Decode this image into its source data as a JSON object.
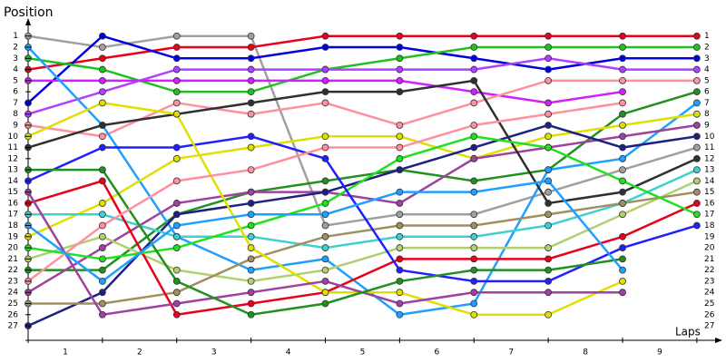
{
  "chart_data": {
    "type": "line",
    "y_label": "Position",
    "x_label": "Laps",
    "x": [
      0,
      1,
      2,
      3,
      4,
      5,
      6,
      7,
      8,
      9
    ],
    "xlim": [
      0,
      9.27
    ],
    "xticks": [
      {
        "value": 0.5,
        "label": "1"
      },
      {
        "value": 1.5,
        "label": "2"
      },
      {
        "value": 2.5,
        "label": "3"
      },
      {
        "value": 3.5,
        "label": "4"
      },
      {
        "value": 4.5,
        "label": "5"
      },
      {
        "value": 5.5,
        "label": "6"
      },
      {
        "value": 6.5,
        "label": "7"
      },
      {
        "value": 7.5,
        "label": "8"
      },
      {
        "value": 8.5,
        "label": "9"
      }
    ],
    "ylim": [
      28.3,
      -0.2
    ],
    "yticks": [
      1,
      2,
      3,
      4,
      5,
      6,
      7,
      8,
      9,
      10,
      11,
      12,
      13,
      14,
      15,
      16,
      17,
      18,
      19,
      20,
      21,
      22,
      23,
      24,
      25,
      26,
      27
    ],
    "series": [
      {
        "color": "#a0a0a0",
        "values": [
          1,
          2,
          1,
          1,
          18,
          17,
          17,
          15,
          13,
          11
        ]
      },
      {
        "color": "#e8001c",
        "values": [
          4,
          3,
          2,
          2,
          1,
          1,
          1,
          1,
          1,
          1
        ]
      },
      {
        "color": "#0000e0",
        "values": [
          7,
          1,
          3,
          3,
          2,
          2,
          3,
          4,
          3,
          3
        ]
      },
      {
        "color": "#20c020",
        "values": [
          3,
          4,
          6,
          6,
          4,
          3,
          2,
          2,
          2,
          2
        ]
      },
      {
        "color": "#b040ff",
        "values": [
          8,
          6,
          4,
          4,
          4,
          4,
          4,
          3,
          4,
          4
        ]
      },
      {
        "color": "#d020ff",
        "values": [
          5,
          5,
          5,
          5,
          5,
          5,
          6,
          7,
          6,
          null
        ]
      },
      {
        "color": "#ff90a0",
        "values": [
          9,
          10,
          7,
          8,
          7,
          9,
          7,
          5,
          5,
          5
        ]
      },
      {
        "color": "#209020",
        "values": [
          22,
          22,
          17,
          15,
          14,
          13,
          14,
          13,
          8,
          6
        ]
      },
      {
        "color": "#1ea0ff",
        "values": [
          2,
          9,
          19,
          22,
          21,
          26,
          25,
          13,
          12,
          7
        ]
      },
      {
        "color": "#e0e000",
        "values": [
          19,
          16,
          12,
          11,
          10,
          10,
          12,
          10,
          9,
          8
        ]
      },
      {
        "color": "#a040a0",
        "values": [
          24,
          20,
          16,
          15,
          15,
          16,
          12,
          11,
          10,
          9
        ]
      },
      {
        "color": "#202080",
        "values": [
          27,
          24,
          17,
          16,
          15,
          13,
          11,
          9,
          11,
          10
        ]
      },
      {
        "color": "#303030",
        "values": [
          11,
          9,
          8,
          7,
          6,
          6,
          5,
          16,
          15,
          12
        ]
      },
      {
        "color": "#40d0d0",
        "values": [
          17,
          17,
          19,
          19,
          20,
          19,
          19,
          18,
          16,
          13
        ]
      },
      {
        "color": "#b0d070",
        "values": [
          21,
          19,
          22,
          23,
          22,
          20,
          20,
          20,
          17,
          14
        ]
      },
      {
        "color": "#a09060",
        "values": [
          25,
          25,
          24,
          21,
          19,
          18,
          18,
          17,
          16,
          15
        ]
      },
      {
        "color": "#e8001c",
        "values": [
          16,
          14,
          26,
          25,
          24,
          21,
          21,
          21,
          19,
          16
        ]
      },
      {
        "color": "#20e020",
        "values": [
          20,
          21,
          20,
          18,
          16,
          12,
          10,
          11,
          14,
          17
        ]
      },
      {
        "color": "#2020ff",
        "values": [
          14,
          11,
          11,
          10,
          12,
          22,
          23,
          23,
          20,
          18
        ]
      },
      {
        "color": "#e0e000",
        "values": [
          10,
          7,
          8,
          20,
          24,
          24,
          26,
          26,
          23,
          null
        ]
      },
      {
        "color": "#a040a0",
        "values": [
          15,
          26,
          25,
          24,
          23,
          25,
          24,
          24,
          24,
          null
        ]
      },
      {
        "color": "#209020",
        "values": [
          13,
          13,
          23,
          26,
          25,
          23,
          22,
          22,
          21,
          null
        ]
      },
      {
        "color": "#ff90a0",
        "values": [
          23,
          18,
          14,
          13,
          11,
          11,
          9,
          8,
          7,
          null
        ]
      },
      {
        "color": "#1ea0ff",
        "values": [
          18,
          23,
          18,
          17,
          17,
          15,
          15,
          14,
          22,
          null
        ]
      }
    ]
  }
}
